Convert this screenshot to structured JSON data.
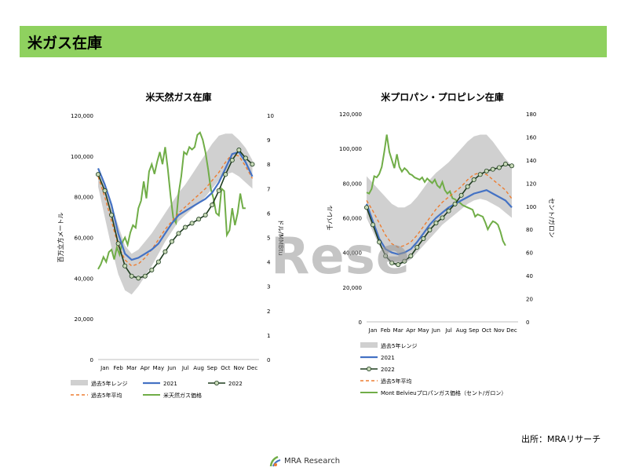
{
  "header": {
    "title": "米ガス在庫"
  },
  "watermark": "Rese",
  "source": "出所：MRAリサーチ",
  "logo": {
    "name": "MRA Research"
  },
  "colors": {
    "header": "#8fd15f",
    "range": "#d0d0d0",
    "y2021": "#4472c4",
    "y2022": "#1f3d1f",
    "avg": "#ed7d31",
    "price": "#70ad47",
    "marker_fill": "#c7d9b7"
  },
  "months": [
    "Jan",
    "Feb",
    "Mar",
    "Apr",
    "May",
    "Jun",
    "Jul",
    "Aug",
    "Sep",
    "Oct",
    "Nov",
    "Dec"
  ],
  "chart_data": [
    {
      "type": "line",
      "title": "米天然ガス在庫",
      "ylabel": "百万立方メートル",
      "y2label": "ドル/MMBtu",
      "ylim": [
        0,
        120000
      ],
      "y2lim": [
        0,
        10
      ],
      "yticks": [
        "0",
        "20,000",
        "40,000",
        "60,000",
        "80,000",
        "100,000",
        "120,000"
      ],
      "y2ticks": [
        "0",
        "1",
        "2",
        "3",
        "4",
        "5",
        "6",
        "7",
        "8",
        "9",
        "10"
      ],
      "x": [
        1,
        1.5,
        2,
        2.5,
        3,
        3.5,
        4,
        4.5,
        5,
        5.5,
        6,
        6.5,
        7,
        7.5,
        8,
        8.5,
        9,
        9.5,
        10,
        10.5,
        11,
        11.5,
        12,
        12.5
      ],
      "series": [
        {
          "name": "過去5年レンジ",
          "kind": "range",
          "low": [
            85000,
            70000,
            55000,
            42000,
            34000,
            32000,
            36000,
            41000,
            46000,
            52000,
            58000,
            63000,
            68000,
            71000,
            74000,
            77000,
            80000,
            84000,
            88000,
            91000,
            92000,
            90000,
            87000,
            84000
          ],
          "high": [
            92000,
            86000,
            76000,
            66000,
            56000,
            52000,
            54000,
            58000,
            62000,
            67000,
            72000,
            77000,
            82000,
            86000,
            91000,
            96000,
            101000,
            106000,
            110000,
            111000,
            111000,
            108000,
            104000,
            98000
          ]
        },
        {
          "name": "2021",
          "axis": "left",
          "values": [
            94000,
            86000,
            76000,
            62000,
            52000,
            49000,
            50000,
            52000,
            54000,
            57000,
            62000,
            67000,
            71000,
            73000,
            75000,
            77000,
            79000,
            82000,
            87000,
            94000,
            101000,
            102000,
            97000,
            90000
          ]
        },
        {
          "name": "2022",
          "axis": "left",
          "values": [
            91000,
            83000,
            71000,
            57000,
            46000,
            41000,
            40000,
            41000,
            44000,
            48000,
            53000,
            58000,
            62000,
            65000,
            67000,
            69000,
            71000,
            76000,
            83000,
            91000,
            98000,
            103000,
            99000,
            96000
          ]
        },
        {
          "name": "過去5年平均",
          "axis": "left",
          "values": [
            90000,
            80000,
            68000,
            56000,
            49000,
            46000,
            47000,
            50000,
            54000,
            59000,
            64000,
            68000,
            72000,
            75000,
            78000,
            81000,
            84000,
            88000,
            92000,
            97000,
            101000,
            100000,
            95000,
            89000
          ]
        },
        {
          "name": "米天然ガス価格",
          "axis": "right",
          "x": [
            1,
            1.2,
            1.4,
            1.6,
            1.8,
            2.0,
            2.2,
            2.4,
            2.6,
            2.8,
            3.0,
            3.2,
            3.4,
            3.6,
            3.8,
            4.0,
            4.2,
            4.4,
            4.6,
            4.8,
            5.0,
            5.2,
            5.4,
            5.6,
            5.8,
            6.0,
            6.2,
            6.4,
            6.6,
            6.8,
            7.0,
            7.2,
            7.4,
            7.6,
            7.8,
            8.0,
            8.2,
            8.4,
            8.6,
            8.8,
            9.0,
            9.2,
            9.4,
            9.6,
            9.8,
            10.0,
            10.2,
            10.4,
            10.6,
            10.8,
            11.0,
            11.2,
            11.4,
            11.6,
            11.8,
            12.0
          ],
          "values": [
            3.7,
            3.9,
            4.2,
            4.0,
            4.4,
            4.5,
            4.1,
            4.6,
            4.3,
            4.8,
            5.0,
            4.7,
            5.2,
            5.5,
            5.4,
            6.2,
            6.5,
            7.3,
            6.6,
            7.7,
            8.0,
            7.6,
            8.1,
            8.5,
            8.0,
            8.7,
            7.8,
            6.7,
            5.8,
            5.6,
            6.8,
            7.5,
            8.5,
            8.4,
            8.7,
            8.6,
            8.7,
            9.2,
            9.3,
            9.0,
            8.5,
            7.8,
            7.0,
            6.6,
            6.0,
            5.9,
            7.0,
            6.9,
            5.1,
            5.3,
            6.2,
            5.5,
            6.0,
            6.8,
            6.2,
            6.2
          ]
        }
      ],
      "legend": [
        "過去5年レンジ",
        "2021",
        "2022",
        "過去5年平均",
        "米天然ガス価格"
      ]
    },
    {
      "type": "line",
      "title": "米プロパン・プロピレン在庫",
      "ylabel": "千バレル",
      "y2label": "セント/ガロン",
      "ylim": [
        0,
        120000
      ],
      "y2lim": [
        0,
        180
      ],
      "yticks": [
        "0",
        "20,000",
        "40,000",
        "60,000",
        "80,000",
        "100,000",
        "120,000"
      ],
      "y2ticks": [
        "0",
        "20",
        "40",
        "60",
        "80",
        "100",
        "120",
        "140",
        "160",
        "180"
      ],
      "x": [
        1,
        1.5,
        2,
        2.5,
        3,
        3.5,
        4,
        4.5,
        5,
        5.5,
        6,
        6.5,
        7,
        7.5,
        8,
        8.5,
        9,
        9.5,
        10,
        10.5,
        11,
        11.5,
        12,
        12.5
      ],
      "series": [
        {
          "name": "過去5年レンジ",
          "kind": "range",
          "low": [
            60000,
            52000,
            44000,
            38000,
            33000,
            32000,
            34000,
            36000,
            40000,
            44000,
            48000,
            52000,
            56000,
            59000,
            62000,
            65000,
            68000,
            70000,
            71000,
            70000,
            68000,
            66000,
            63000,
            60000
          ],
          "high": [
            84000,
            80000,
            76000,
            72000,
            68000,
            66000,
            66000,
            68000,
            72000,
            77000,
            82000,
            86000,
            89000,
            92000,
            96000,
            100000,
            104000,
            107000,
            108000,
            108000,
            104000,
            99000,
            94000,
            90000
          ]
        },
        {
          "name": "2021",
          "axis": "left",
          "values": [
            68000,
            58000,
            48000,
            42000,
            40000,
            39000,
            40000,
            42000,
            46000,
            51000,
            56000,
            60000,
            63000,
            66000,
            68000,
            70000,
            72000,
            74000,
            75000,
            76000,
            74000,
            72000,
            70000,
            66000
          ]
        },
        {
          "name": "2022",
          "axis": "left",
          "values": [
            66000,
            56000,
            46000,
            38000,
            34000,
            33000,
            35000,
            38000,
            43000,
            48000,
            53000,
            57000,
            60000,
            64000,
            68000,
            73000,
            78000,
            82000,
            85000,
            87000,
            88000,
            89000,
            91000,
            90000
          ]
        },
        {
          "name": "過去5年平均",
          "axis": "left",
          "values": [
            70000,
            64000,
            57000,
            50000,
            45000,
            43000,
            44000,
            46000,
            50000,
            55000,
            60000,
            65000,
            69000,
            72000,
            75000,
            78000,
            82000,
            85000,
            86000,
            85000,
            82000,
            79000,
            76000,
            71000
          ]
        },
        {
          "name": "Mont Belvieuプロパンガス価格（セント/ガロン）",
          "axis": "right",
          "x": [
            1,
            1.2,
            1.4,
            1.6,
            1.8,
            2.0,
            2.2,
            2.4,
            2.6,
            2.8,
            3.0,
            3.2,
            3.4,
            3.6,
            3.8,
            4.0,
            4.2,
            4.4,
            4.6,
            4.8,
            5.0,
            5.2,
            5.4,
            5.6,
            5.8,
            6.0,
            6.2,
            6.4,
            6.6,
            6.8,
            7.0,
            7.2,
            7.4,
            7.6,
            7.8,
            8.0,
            8.2,
            8.4,
            8.6,
            8.8,
            9.0,
            9.2,
            9.4,
            9.6,
            9.8,
            10.0,
            10.2,
            10.4,
            10.6,
            10.8,
            11.0,
            11.2,
            11.4,
            11.6,
            11.8,
            12.0
          ],
          "values": [
            112,
            111,
            115,
            126,
            125,
            128,
            134,
            147,
            162,
            147,
            140,
            133,
            145,
            134,
            130,
            133,
            131,
            128,
            127,
            125,
            124,
            123,
            125,
            121,
            124,
            122,
            120,
            123,
            118,
            116,
            121,
            114,
            111,
            113,
            107,
            106,
            104,
            103,
            101,
            100,
            99,
            98,
            97,
            91,
            93,
            92,
            91,
            86,
            80,
            84,
            87,
            86,
            84,
            78,
            70,
            66
          ]
        }
      ],
      "legend": [
        "過去5年レンジ",
        "2021",
        "2022",
        "過去5年平均",
        "Mont Belvieuプロパンガス価格（セント/ガロン）"
      ]
    }
  ]
}
